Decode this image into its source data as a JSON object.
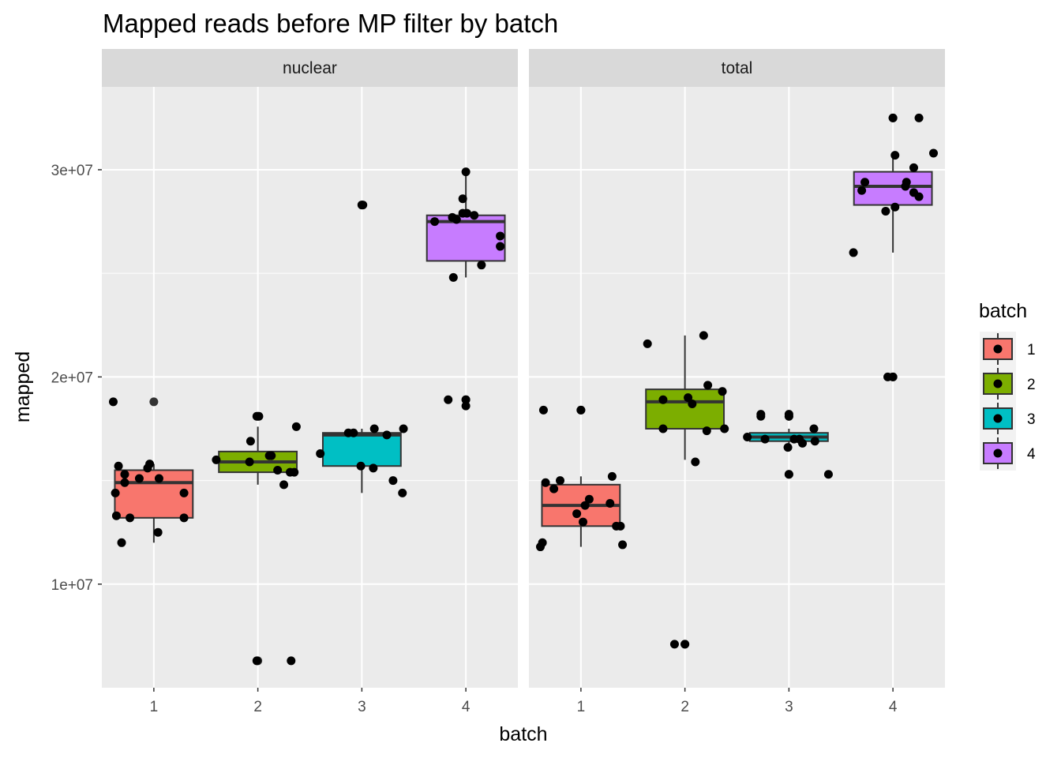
{
  "chart_data": {
    "type": "boxplot",
    "title": "Mapped reads before MP filter by batch",
    "xlabel": "batch",
    "ylabel": "mapped",
    "categories": [
      "1",
      "2",
      "3",
      "4"
    ],
    "y_ticks": [
      {
        "value": 10000000,
        "label": "1e+07"
      },
      {
        "value": 20000000,
        "label": "2e+07"
      },
      {
        "value": 30000000,
        "label": "3e+07"
      }
    ],
    "ylim": [
      5000000,
      34000000
    ],
    "legend": {
      "title": "batch",
      "position": "right",
      "items": [
        {
          "label": "1",
          "color": "#F8766D"
        },
        {
          "label": "2",
          "color": "#7CAE00"
        },
        {
          "label": "3",
          "color": "#00BFC4"
        },
        {
          "label": "4",
          "color": "#C77CFF"
        }
      ]
    },
    "facets": [
      {
        "name": "nuclear",
        "boxes": [
          {
            "batch": "1",
            "q1": 13200000,
            "median": 14900000,
            "q3": 15500000,
            "whisker_low": 12000000,
            "whisker_high": 15800000,
            "outliers": [
              18800000
            ]
          },
          {
            "batch": "2",
            "q1": 15400000,
            "median": 15900000,
            "q3": 16400000,
            "whisker_low": 14800000,
            "whisker_high": 17600000,
            "outliers": [
              18100000,
              6300000
            ]
          },
          {
            "batch": "3",
            "q1": 15700000,
            "median": 17200000,
            "q3": 17300000,
            "whisker_low": 14400000,
            "whisker_high": 17500000,
            "outliers": [
              28300000
            ]
          },
          {
            "batch": "4",
            "q1": 25600000,
            "median": 27500000,
            "q3": 27800000,
            "whisker_low": 24800000,
            "whisker_high": 29900000,
            "outliers": [
              18900000
            ]
          }
        ],
        "points": [
          {
            "x": 0.61,
            "y": 18800000
          },
          {
            "x": 0.63,
            "y": 14400000
          },
          {
            "x": 0.64,
            "y": 13300000
          },
          {
            "x": 0.66,
            "y": 15700000
          },
          {
            "x": 0.69,
            "y": 12000000
          },
          {
            "x": 0.72,
            "y": 15300000
          },
          {
            "x": 0.72,
            "y": 14900000
          },
          {
            "x": 0.77,
            "y": 13200000
          },
          {
            "x": 0.86,
            "y": 15100000
          },
          {
            "x": 0.94,
            "y": 15600000
          },
          {
            "x": 0.96,
            "y": 15800000
          },
          {
            "x": 1.04,
            "y": 12500000
          },
          {
            "x": 1.05,
            "y": 15100000
          },
          {
            "x": 1.29,
            "y": 13200000
          },
          {
            "x": 1.29,
            "y": 14400000
          },
          {
            "x": 1.6,
            "y": 16000000
          },
          {
            "x": 1.93,
            "y": 16900000
          },
          {
            "x": 1.92,
            "y": 15900000
          },
          {
            "x": 1.99,
            "y": 18100000
          },
          {
            "x": 2.01,
            "y": 18100000
          },
          {
            "x": 2.11,
            "y": 16200000
          },
          {
            "x": 2.13,
            "y": 16200000
          },
          {
            "x": 2.19,
            "y": 15500000
          },
          {
            "x": 2.25,
            "y": 14800000
          },
          {
            "x": 2.31,
            "y": 15400000
          },
          {
            "x": 2.35,
            "y": 15400000
          },
          {
            "x": 2.37,
            "y": 17600000
          },
          {
            "x": 1.99,
            "y": 6300000
          },
          {
            "x": 2.32,
            "y": 6300000
          },
          {
            "x": 2.6,
            "y": 16300000
          },
          {
            "x": 2.87,
            "y": 17300000
          },
          {
            "x": 2.92,
            "y": 17300000
          },
          {
            "x": 2.99,
            "y": 15700000
          },
          {
            "x": 3.0,
            "y": 28300000
          },
          {
            "x": 3.01,
            "y": 28300000
          },
          {
            "x": 3.11,
            "y": 15600000
          },
          {
            "x": 3.12,
            "y": 17500000
          },
          {
            "x": 3.24,
            "y": 17200000
          },
          {
            "x": 3.3,
            "y": 15000000
          },
          {
            "x": 3.39,
            "y": 14400000
          },
          {
            "x": 3.4,
            "y": 17500000
          },
          {
            "x": 3.7,
            "y": 27500000
          },
          {
            "x": 3.83,
            "y": 18900000
          },
          {
            "x": 3.87,
            "y": 27700000
          },
          {
            "x": 3.88,
            "y": 24800000
          },
          {
            "x": 3.91,
            "y": 27600000
          },
          {
            "x": 3.97,
            "y": 27900000
          },
          {
            "x": 3.97,
            "y": 28600000
          },
          {
            "x": 4.0,
            "y": 18900000
          },
          {
            "x": 4.0,
            "y": 18600000
          },
          {
            "x": 4.01,
            "y": 27900000
          },
          {
            "x": 4.0,
            "y": 29900000
          },
          {
            "x": 4.08,
            "y": 27800000
          },
          {
            "x": 4.15,
            "y": 25400000
          },
          {
            "x": 4.33,
            "y": 26800000
          },
          {
            "x": 4.33,
            "y": 26300000
          }
        ]
      },
      {
        "name": "total",
        "boxes": [
          {
            "batch": "1",
            "q1": 12800000,
            "median": 13800000,
            "q3": 14800000,
            "whisker_low": 11800000,
            "whisker_high": 15200000,
            "outliers": [
              18400000
            ]
          },
          {
            "batch": "2",
            "q1": 17500000,
            "median": 18800000,
            "q3": 19400000,
            "whisker_low": 16000000,
            "whisker_high": 22000000,
            "outliers": [
              7100000
            ]
          },
          {
            "batch": "3",
            "q1": 16900000,
            "median": 17100000,
            "q3": 17300000,
            "whisker_low": 16600000,
            "whisker_high": 17500000,
            "outliers": [
              18100000,
              15300000
            ]
          },
          {
            "batch": "4",
            "q1": 28300000,
            "median": 29200000,
            "q3": 29900000,
            "whisker_low": 26000000,
            "whisker_high": 30700000,
            "outliers": [
              32500000,
              20000000
            ]
          }
        ],
        "points": [
          {
            "x": 0.61,
            "y": 11800000
          },
          {
            "x": 0.63,
            "y": 12000000
          },
          {
            "x": 0.64,
            "y": 18400000
          },
          {
            "x": 0.66,
            "y": 14900000
          },
          {
            "x": 0.74,
            "y": 14600000
          },
          {
            "x": 0.8,
            "y": 15000000
          },
          {
            "x": 0.96,
            "y": 13400000
          },
          {
            "x": 1.0,
            "y": 18400000
          },
          {
            "x": 1.02,
            "y": 13000000
          },
          {
            "x": 1.04,
            "y": 13800000
          },
          {
            "x": 1.08,
            "y": 14100000
          },
          {
            "x": 1.28,
            "y": 13900000
          },
          {
            "x": 1.3,
            "y": 15200000
          },
          {
            "x": 1.34,
            "y": 12800000
          },
          {
            "x": 1.38,
            "y": 12800000
          },
          {
            "x": 1.4,
            "y": 11900000
          },
          {
            "x": 1.64,
            "y": 21600000
          },
          {
            "x": 1.79,
            "y": 17500000
          },
          {
            "x": 1.79,
            "y": 18900000
          },
          {
            "x": 1.9,
            "y": 7100000
          },
          {
            "x": 2.0,
            "y": 7100000
          },
          {
            "x": 2.03,
            "y": 19000000
          },
          {
            "x": 2.07,
            "y": 18700000
          },
          {
            "x": 2.1,
            "y": 15900000
          },
          {
            "x": 2.18,
            "y": 22000000
          },
          {
            "x": 2.21,
            "y": 17400000
          },
          {
            "x": 2.22,
            "y": 19600000
          },
          {
            "x": 2.36,
            "y": 19300000
          },
          {
            "x": 2.38,
            "y": 17500000
          },
          {
            "x": 2.6,
            "y": 17100000
          },
          {
            "x": 2.73,
            "y": 18100000
          },
          {
            "x": 2.73,
            "y": 18200000
          },
          {
            "x": 2.77,
            "y": 17000000
          },
          {
            "x": 2.99,
            "y": 16600000
          },
          {
            "x": 3.0,
            "y": 18100000
          },
          {
            "x": 3.0,
            "y": 18200000
          },
          {
            "x": 3.0,
            "y": 15300000
          },
          {
            "x": 3.05,
            "y": 17000000
          },
          {
            "x": 3.1,
            "y": 17000000
          },
          {
            "x": 3.13,
            "y": 16800000
          },
          {
            "x": 3.24,
            "y": 17500000
          },
          {
            "x": 3.25,
            "y": 16900000
          },
          {
            "x": 3.38,
            "y": 15300000
          },
          {
            "x": 3.62,
            "y": 26000000
          },
          {
            "x": 3.7,
            "y": 29000000
          },
          {
            "x": 3.73,
            "y": 29400000
          },
          {
            "x": 3.93,
            "y": 28000000
          },
          {
            "x": 4.0,
            "y": 32500000
          },
          {
            "x": 4.02,
            "y": 30700000
          },
          {
            "x": 4.02,
            "y": 28200000
          },
          {
            "x": 3.95,
            "y": 20000000
          },
          {
            "x": 4.0,
            "y": 20000000
          },
          {
            "x": 4.12,
            "y": 29200000
          },
          {
            "x": 4.13,
            "y": 29400000
          },
          {
            "x": 4.2,
            "y": 30100000
          },
          {
            "x": 4.2,
            "y": 28900000
          },
          {
            "x": 4.25,
            "y": 32500000
          },
          {
            "x": 4.25,
            "y": 28700000
          },
          {
            "x": 4.39,
            "y": 30800000
          }
        ]
      }
    ]
  }
}
